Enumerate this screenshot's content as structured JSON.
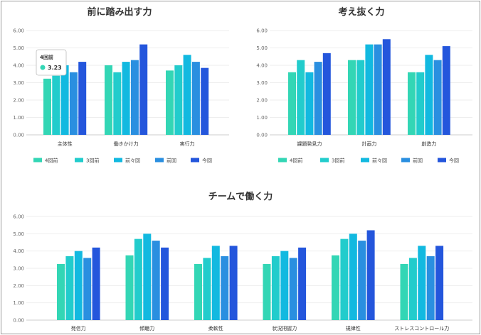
{
  "colors": [
    "#33d6b5",
    "#22cccc",
    "#12b9e0",
    "#2a8fe0",
    "#2456dc"
  ],
  "chart_data": [
    {
      "type": "bar",
      "title": "前に踏み出す力",
      "categories": [
        "主体性",
        "働きかけ力",
        "実行力"
      ],
      "series": [
        {
          "name": "4回前",
          "values": [
            3.23,
            4.0,
            3.7
          ]
        },
        {
          "name": "3回前",
          "values": [
            3.4,
            3.6,
            4.0
          ]
        },
        {
          "name": "前々回",
          "values": [
            4.0,
            4.2,
            4.6
          ]
        },
        {
          "name": "前回",
          "values": [
            3.6,
            4.3,
            4.2
          ]
        },
        {
          "name": "今回",
          "values": [
            4.2,
            5.2,
            3.85
          ]
        }
      ],
      "yticks": [
        "0.00",
        "1.00",
        "2.00",
        "3.00",
        "4.00",
        "5.00",
        "6.00"
      ],
      "ylim": [
        0,
        6
      ],
      "grid": true,
      "legend": "bottom",
      "tooltip": {
        "series": "4回前",
        "value": "3.23"
      }
    },
    {
      "type": "bar",
      "title": "考え抜く力",
      "categories": [
        "課題発見力",
        "計画力",
        "創造力"
      ],
      "series": [
        {
          "name": "4回前",
          "values": [
            3.6,
            4.3,
            3.6
          ]
        },
        {
          "name": "3回前",
          "values": [
            4.3,
            4.3,
            3.6
          ]
        },
        {
          "name": "前々回",
          "values": [
            3.6,
            5.2,
            4.6
          ]
        },
        {
          "name": "前回",
          "values": [
            4.2,
            5.2,
            4.3
          ]
        },
        {
          "name": "今回",
          "values": [
            4.7,
            5.5,
            5.1
          ]
        }
      ],
      "yticks": [
        "0.00",
        "1.00",
        "2.00",
        "3.00",
        "4.00",
        "5.00",
        "6.00"
      ],
      "ylim": [
        0,
        6
      ],
      "grid": true,
      "legend": "bottom"
    },
    {
      "type": "bar",
      "title": "チームで働く力",
      "categories": [
        "発信力",
        "傾聴力",
        "柔軟性",
        "状況把握力",
        "規律性",
        "ストレスコントロール力"
      ],
      "series": [
        {
          "name": "4回前",
          "values": [
            3.25,
            3.75,
            3.25,
            3.25,
            3.75,
            3.25
          ]
        },
        {
          "name": "3回前",
          "values": [
            3.7,
            4.7,
            3.6,
            3.7,
            4.7,
            3.6
          ]
        },
        {
          "name": "前々回",
          "values": [
            4.0,
            5.0,
            4.3,
            4.0,
            5.0,
            4.3
          ]
        },
        {
          "name": "前回",
          "values": [
            3.6,
            4.6,
            3.7,
            3.6,
            4.6,
            3.7
          ]
        },
        {
          "name": "今回",
          "values": [
            4.2,
            4.2,
            4.3,
            4.2,
            5.2,
            4.3
          ]
        }
      ],
      "yticks": [
        "0.00",
        "1.00",
        "2.00",
        "3.00",
        "4.00",
        "5.00",
        "6.00"
      ],
      "ylim": [
        0,
        6
      ],
      "grid": true
    }
  ]
}
